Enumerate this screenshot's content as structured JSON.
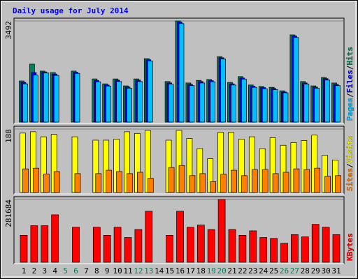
{
  "chart_data": {
    "type": "bar",
    "title": "Daily usage for July 2014",
    "categories": [
      1,
      2,
      3,
      4,
      5,
      6,
      7,
      8,
      9,
      10,
      11,
      12,
      13,
      14,
      15,
      16,
      17,
      18,
      19,
      20,
      21,
      22,
      23,
      24,
      25,
      26,
      27,
      28,
      29,
      30,
      31
    ],
    "category_colors": [
      "#000000",
      "#000000",
      "#000000",
      "#000000",
      "#00805c",
      "#00805c",
      "#000000",
      "#000000",
      "#000000",
      "#000000",
      "#000000",
      "#00805c",
      "#00805c",
      "#000000",
      "#000000",
      "#000000",
      "#000000",
      "#000000",
      "#00805c",
      "#00805c",
      "#000000",
      "#000000",
      "#000000",
      "#000000",
      "#000000",
      "#00805c",
      "#00805c",
      "#000000",
      "#000000",
      "#000000",
      "#000000"
    ],
    "legend_separator": "/",
    "panels": [
      {
        "ylim": [
          0,
          3492
        ],
        "yticks": [
          3492
        ],
        "series": [
          {
            "name": "Pages",
            "color": "#00c0ff",
            "values": [
              1320,
              1620,
              1700,
              1610,
              0,
              1680,
              0,
              1390,
              1240,
              1400,
              1170,
              1400,
              2110,
              0,
              1310,
              3400,
              1260,
              1350,
              1390,
              2180,
              1280,
              1480,
              1200,
              1150,
              1120,
              1010,
              2920,
              1310,
              1170,
              1450,
              1260
            ]
          },
          {
            "name": "Files",
            "color": "#0000ff",
            "values": [
              1370,
              1710,
              1730,
              1660,
              0,
              1720,
              0,
              1440,
              1280,
              1450,
              1210,
              1450,
              2150,
              0,
              1350,
              3450,
              1300,
              1400,
              1430,
              2220,
              1320,
              1520,
              1240,
              1190,
              1160,
              1040,
              2970,
              1350,
              1210,
              1500,
              1300
            ]
          },
          {
            "name": "Hits",
            "color": "#00805c",
            "values": [
              1420,
              2000,
              1760,
              1710,
              0,
              1760,
              0,
              1490,
              1320,
              1490,
              1250,
              1490,
              2190,
              0,
              1400,
              3492,
              1350,
              1440,
              1470,
              2260,
              1370,
              1570,
              1280,
              1230,
              1200,
              1080,
              3010,
              1400,
              1250,
              1540,
              1350
            ]
          }
        ]
      },
      {
        "ylim": [
          0,
          188
        ],
        "yticks": [
          188
        ],
        "series": [
          {
            "name": "Sites",
            "color": "#ff8000",
            "values": [
              70,
              72,
              55,
              62,
              0,
              56,
              0,
              56,
              66,
              62,
              56,
              60,
              42,
              0,
              74,
              80,
              50,
              56,
              32,
              54,
              66,
              50,
              68,
              68,
              56,
              60,
              70,
              68,
              72,
              48,
              50
            ]
          },
          {
            "name": "Visits",
            "color": "#ffff00",
            "values": [
              176,
              180,
              165,
              172,
              0,
              165,
              0,
              155,
              155,
              158,
              180,
              175,
              184,
              0,
              155,
              184,
              160,
              130,
              100,
              178,
              178,
              158,
              165,
              130,
              162,
              140,
              148,
              154,
              170,
              110,
              96
            ]
          }
        ]
      },
      {
        "ylim": [
          0,
          281684
        ],
        "yticks": [
          281684
        ],
        "series": [
          {
            "name": "KBytes",
            "color": "#ff0000",
            "values": [
              121000,
              164000,
              164000,
              213000,
              0,
              157000,
              0,
              157000,
              121000,
              157000,
              111000,
              147000,
              229000,
              0,
              121000,
              229000,
              157000,
              167000,
              147000,
              281684,
              147000,
              121000,
              141000,
              111000,
              107000,
              85000,
              124000,
              114000,
              170000,
              157000,
              124000
            ]
          }
        ]
      }
    ]
  }
}
